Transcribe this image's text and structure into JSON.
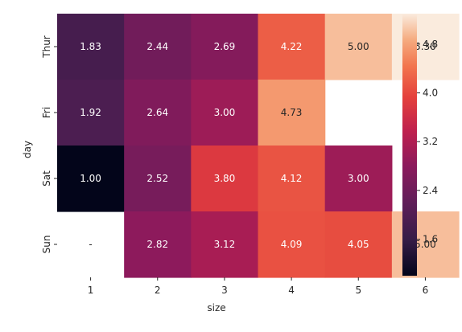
{
  "chart_data": {
    "type": "heatmap",
    "xlabel": "size",
    "ylabel": "day",
    "x_categories": [
      "1",
      "2",
      "3",
      "4",
      "5",
      "6"
    ],
    "y_categories": [
      "Thur",
      "Fri",
      "Sat",
      "Sun"
    ],
    "values": [
      [
        1.83,
        2.44,
        2.69,
        4.22,
        5.0,
        5.3
      ],
      [
        1.92,
        2.64,
        3.0,
        4.73,
        null,
        null
      ],
      [
        1.0,
        2.52,
        3.8,
        4.12,
        3.0,
        null
      ],
      [
        null,
        2.82,
        3.12,
        4.09,
        4.05,
        5.0
      ]
    ],
    "missing_label": "-",
    "annotations_format": "2 decimals",
    "colormap": "rocket",
    "vmin": 1.0,
    "vmax": 5.3,
    "colorbar_ticks": [
      "1.6",
      "2.4",
      "3.2",
      "4.0",
      "4.8"
    ],
    "grid": false,
    "legend": "colorbar right"
  }
}
